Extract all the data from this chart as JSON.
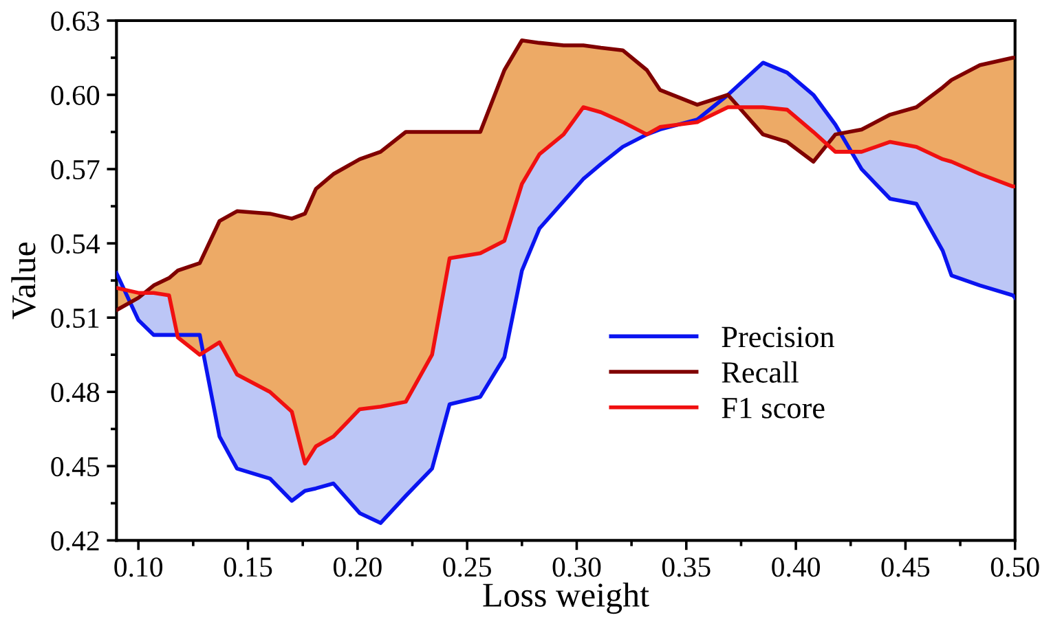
{
  "chart_data": {
    "type": "line",
    "xlabel": "Loss weight",
    "ylabel": "Value",
    "x": [
      0.09,
      0.1,
      0.107,
      0.114,
      0.118,
      0.128,
      0.137,
      0.145,
      0.16,
      0.17,
      0.176,
      0.181,
      0.189,
      0.201,
      0.2105,
      0.222,
      0.234,
      0.242,
      0.256,
      0.267,
      0.275,
      0.283,
      0.294,
      0.303,
      0.311,
      0.321,
      0.332,
      0.338,
      0.355,
      0.369,
      0.385,
      0.396,
      0.408,
      0.418,
      0.43,
      0.443,
      0.455,
      0.467,
      0.471,
      0.484,
      0.499,
      0.5
    ],
    "series": [
      {
        "name": "Precision",
        "color": "#0a14f0",
        "values": [
          0.528,
          0.509,
          0.503,
          0.503,
          0.503,
          0.503,
          0.462,
          0.449,
          0.445,
          0.436,
          0.44,
          0.441,
          0.443,
          0.431,
          0.427,
          0.438,
          0.449,
          0.475,
          0.478,
          0.494,
          0.529,
          0.546,
          0.557,
          0.566,
          0.572,
          0.579,
          0.584,
          0.586,
          0.59,
          0.6,
          0.613,
          0.609,
          0.6,
          0.588,
          0.57,
          0.558,
          0.556,
          0.537,
          0.527,
          0.523,
          0.519,
          0.518
        ],
        "lower": [
          0.528,
          0.509,
          0.503,
          0.503,
          0.503,
          0.503,
          0.462,
          0.449,
          0.445,
          0.436,
          0.44,
          0.441,
          0.443,
          0.431,
          0.427,
          0.438,
          0.449,
          0.475,
          0.478,
          0.494,
          0.529,
          0.546,
          0.557,
          0.566,
          0.572,
          0.579,
          0.584,
          0.586,
          0.59,
          0.6,
          0.613,
          0.609,
          0.6,
          0.588,
          0.57,
          0.558,
          0.556,
          0.537,
          0.527,
          0.523,
          0.519,
          0.518
        ],
        "upper": [
          0.522,
          0.52,
          0.52,
          0.519,
          0.502,
          0.495,
          0.5,
          0.487,
          0.48,
          0.472,
          0.451,
          0.458,
          0.462,
          0.473,
          0.474,
          0.476,
          0.495,
          0.534,
          0.536,
          0.541,
          0.564,
          0.576,
          0.584,
          0.595,
          0.593,
          0.589,
          0.584,
          0.587,
          0.589,
          0.595,
          0.595,
          0.594,
          0.585,
          0.577,
          0.577,
          0.581,
          0.579,
          0.574,
          0.573,
          0.568,
          0.563,
          0.563
        ]
      },
      {
        "name": "Recall",
        "color": "#800000",
        "values": [
          0.513,
          0.518,
          0.523,
          0.526,
          0.529,
          0.532,
          0.549,
          0.553,
          0.552,
          0.55,
          0.552,
          0.562,
          0.568,
          0.574,
          0.577,
          0.585,
          0.585,
          0.585,
          0.585,
          0.61,
          0.622,
          0.621,
          0.62,
          0.62,
          0.619,
          0.618,
          0.61,
          0.602,
          0.596,
          0.6,
          0.584,
          0.581,
          0.573,
          0.584,
          0.586,
          0.592,
          0.595,
          0.603,
          0.606,
          0.612,
          0.615,
          0.615
        ],
        "lower": [
          0.522,
          0.52,
          0.52,
          0.519,
          0.502,
          0.495,
          0.5,
          0.487,
          0.48,
          0.472,
          0.451,
          0.458,
          0.462,
          0.473,
          0.474,
          0.476,
          0.495,
          0.534,
          0.536,
          0.541,
          0.564,
          0.576,
          0.584,
          0.595,
          0.593,
          0.589,
          0.584,
          0.587,
          0.589,
          0.595,
          0.595,
          0.594,
          0.585,
          0.577,
          0.577,
          0.581,
          0.579,
          0.574,
          0.573,
          0.568,
          0.563,
          0.563
        ],
        "upper": [
          0.513,
          0.518,
          0.523,
          0.526,
          0.529,
          0.532,
          0.549,
          0.553,
          0.552,
          0.55,
          0.552,
          0.562,
          0.568,
          0.574,
          0.577,
          0.585,
          0.585,
          0.585,
          0.585,
          0.61,
          0.622,
          0.621,
          0.62,
          0.62,
          0.619,
          0.618,
          0.61,
          0.602,
          0.596,
          0.6,
          0.584,
          0.581,
          0.573,
          0.584,
          0.586,
          0.592,
          0.595,
          0.603,
          0.606,
          0.612,
          0.615,
          0.615
        ]
      },
      {
        "name": "F1 score",
        "color": "#f01010",
        "values": [
          0.522,
          0.52,
          0.52,
          0.519,
          0.502,
          0.495,
          0.5,
          0.487,
          0.48,
          0.472,
          0.451,
          0.458,
          0.462,
          0.473,
          0.474,
          0.476,
          0.495,
          0.534,
          0.536,
          0.541,
          0.564,
          0.576,
          0.584,
          0.595,
          0.593,
          0.589,
          0.584,
          0.587,
          0.589,
          0.595,
          0.595,
          0.594,
          0.585,
          0.577,
          0.577,
          0.581,
          0.579,
          0.574,
          0.573,
          0.568,
          0.563,
          0.563
        ]
      }
    ],
    "xlim": [
      0.09,
      0.5
    ],
    "xticks": [
      {
        "value": 0.1,
        "label": "0.10"
      },
      0.15,
      {
        "value": 0.2,
        "label": "0.20"
      },
      0.25,
      {
        "value": 0.3,
        "label": "0.30"
      },
      0.35,
      {
        "value": 0.4,
        "label": "0.40"
      },
      0.45,
      {
        "value": 0.5,
        "label": "0.50"
      }
    ],
    "ylim": [
      0.42,
      0.63
    ],
    "yticks": [
      0.42,
      0.45,
      0.48,
      0.51,
      0.54,
      0.57,
      {
        "value": 0.6,
        "label": "0.60"
      },
      0.63
    ],
    "legend": "bottom right",
    "grid": false
  }
}
